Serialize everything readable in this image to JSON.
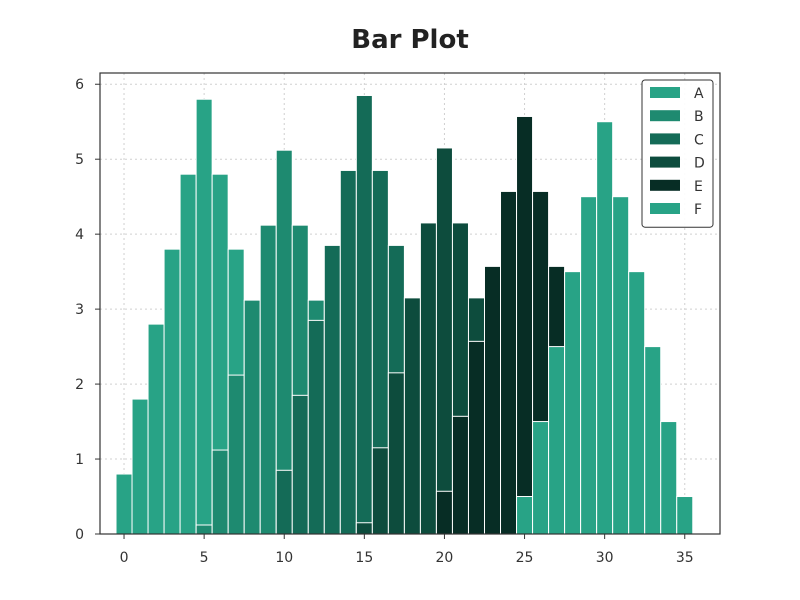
{
  "chart_data": {
    "type": "bar",
    "title": "Bar Plot",
    "xlabel": "",
    "ylabel": "",
    "xlim": [
      -1.5,
      37.2
    ],
    "ylim": [
      0,
      6.15
    ],
    "xticks": [
      0,
      5,
      10,
      15,
      20,
      25,
      30,
      35
    ],
    "yticks": [
      0,
      1,
      2,
      3,
      4,
      5,
      6
    ],
    "grid": true,
    "bar_width": 1,
    "legend_position": "top-right",
    "series": [
      {
        "name": "A",
        "color": "#28a386",
        "x": [
          0,
          1,
          2,
          3,
          4,
          5,
          6,
          7
        ],
        "values": [
          0.8,
          1.8,
          2.8,
          3.8,
          4.8,
          5.8,
          4.8,
          3.8
        ]
      },
      {
        "name": "B",
        "color": "#1e8a70",
        "x": [
          5,
          6,
          7,
          8,
          9,
          10,
          11,
          12
        ],
        "values": [
          0.12,
          1.12,
          2.12,
          3.12,
          4.12,
          5.12,
          4.12,
          3.12
        ]
      },
      {
        "name": "C",
        "color": "#146b57",
        "x": [
          10,
          11,
          12,
          13,
          14,
          15,
          16,
          17
        ],
        "values": [
          0.85,
          1.85,
          2.85,
          3.85,
          4.85,
          5.85,
          4.85,
          3.85
        ]
      },
      {
        "name": "D",
        "color": "#0d4c3d",
        "x": [
          15,
          16,
          17,
          18,
          19,
          20,
          21,
          22
        ],
        "values": [
          0.15,
          1.15,
          2.15,
          3.15,
          4.15,
          5.15,
          4.15,
          3.15
        ]
      },
      {
        "name": "E",
        "color": "#072d25",
        "x": [
          20,
          21,
          22,
          23,
          24,
          25,
          26,
          27
        ],
        "values": [
          0.57,
          1.57,
          2.57,
          3.57,
          4.57,
          5.57,
          4.57,
          3.57
        ]
      },
      {
        "name": "F",
        "color": "#28a386",
        "x": [
          25,
          26,
          27,
          28,
          29,
          30,
          31,
          32,
          33,
          34,
          35
        ],
        "values": [
          0.5,
          1.5,
          2.5,
          3.5,
          4.5,
          5.5,
          4.5,
          3.5,
          2.5,
          1.5,
          0.5
        ]
      }
    ]
  }
}
